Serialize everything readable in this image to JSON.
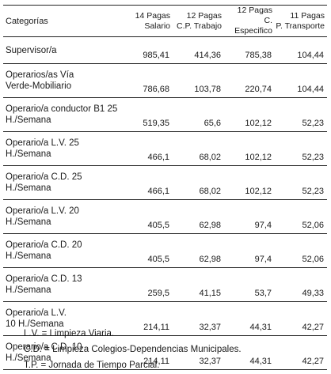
{
  "header": {
    "categorias": "Categorías",
    "col1_line1": "14 Pagas",
    "col1_line2": "Salario",
    "col2_line1": "12 Pagas",
    "col2_line2": "C.P. Trabajo",
    "col3_line1": "12 Pagas",
    "col3_line2": "C. Especifico",
    "col4_line1": "11 Pagas",
    "col4_line2": "P. Transporte"
  },
  "rows": [
    {
      "cat1": "Supervisor/a",
      "cat2": "",
      "v1": "985,41",
      "v2": "414,36",
      "v3": "785,38",
      "v4": "104,44"
    },
    {
      "cat1": "Operarios/as Vía",
      "cat2": "Verde-Mobiliario",
      "v1": "786,68",
      "v2": "103,78",
      "v3": "220,74",
      "v4": "104,44"
    },
    {
      "cat1": "Operario/a conductor B1 25",
      "cat2": "H./Semana",
      "v1": "519,35",
      "v2": "65,6",
      "v3": "102,12",
      "v4": "52,23"
    },
    {
      "cat1": "Operario/a L.V. 25",
      "cat2": "H./Semana",
      "v1": "466,1",
      "v2": "68,02",
      "v3": "102,12",
      "v4": "52,23"
    },
    {
      "cat1": "Operario/a C.D. 25",
      "cat2": "H./Semana",
      "v1": "466,1",
      "v2": "68,02",
      "v3": "102,12",
      "v4": "52,23"
    },
    {
      "cat1": "Operario/a L.V. 20",
      "cat2": "H./Semana",
      "v1": "405,5",
      "v2": "62,98",
      "v3": "97,4",
      "v4": "52,06"
    },
    {
      "cat1": "Operario/a C.D. 20",
      "cat2": "H./Semana",
      "v1": "405,5",
      "v2": "62,98",
      "v3": "97,4",
      "v4": "52,06"
    },
    {
      "cat1": "Operario/a C.D. 13",
      "cat2": "H./Semana",
      "v1": "259,5",
      "v2": "41,15",
      "v3": "53,7",
      "v4": "49,33"
    },
    {
      "cat1": "Operario/a L.V.",
      "cat2": "10 H./Semana",
      "v1": "214,11",
      "v2": "32,37",
      "v3": "44,31",
      "v4": "42,27"
    },
    {
      "cat1": "Operario/a C.D. 10",
      "cat2": "H./Semana",
      "v1": "214,11",
      "v2": "32,37",
      "v3": "44,31",
      "v4": "42,27"
    }
  ],
  "notes": [
    "L.V. = Limpieza Viaria.",
    "C.D. = Limpieza Colegios-Dependencias Municipales.",
    "T.P. = Jornada de Tiempo Parcial."
  ]
}
